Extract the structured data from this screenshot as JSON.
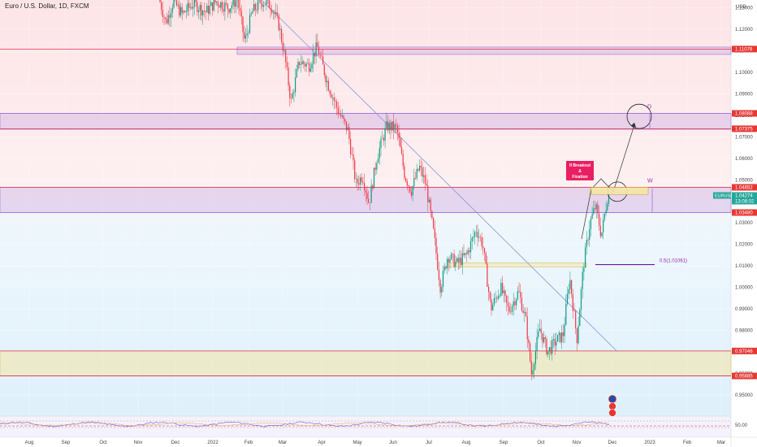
{
  "header": {
    "title": "Euro / U.S. Dollar, 1D, FXCM",
    "currency": "USD"
  },
  "colors": {
    "up": "#089981",
    "down": "#f23645",
    "level_line": "#e0314a",
    "zone_purple": "#b58be0",
    "zone_yellow": "#f3e6a6",
    "trend_line": "#7f8fd6",
    "label_red": "#e53935",
    "label_green": "#26a69a",
    "annotation_pink": "#e91e63",
    "purple_text": "#9c27b0"
  },
  "chart_data": {
    "type": "candlestick",
    "symbol": "EURUSD",
    "timeframe": "1D",
    "ylim": [
      0.941,
      1.138
    ],
    "y_ticks": [
      0.95,
      0.96,
      0.97,
      0.98,
      0.99,
      1.0,
      1.01,
      1.02,
      1.03,
      1.04,
      1.05,
      1.06,
      1.07,
      1.08,
      1.09,
      1.1,
      1.11,
      1.12,
      1.13
    ],
    "x_ticks": [
      "Aug",
      "Sep",
      "Oct",
      "Nov",
      "Dec",
      "2022",
      "Feb",
      "Mar",
      "Apr",
      "May",
      "Jun",
      "Jul",
      "Aug",
      "Sep",
      "Oct",
      "Nov",
      "Dec",
      "2023",
      "Feb",
      "Mar"
    ],
    "price_anchors": [
      [
        197,
        1.135
      ],
      [
        206,
        1.123
      ],
      [
        215,
        1.133
      ],
      [
        226,
        1.127
      ],
      [
        240,
        1.132
      ],
      [
        255,
        1.128
      ],
      [
        268,
        1.133
      ],
      [
        283,
        1.13
      ],
      [
        294,
        1.134
      ],
      [
        303,
        1.114
      ],
      [
        312,
        1.128
      ],
      [
        324,
        1.133
      ],
      [
        336,
        1.131
      ],
      [
        345,
        1.122
      ],
      [
        352,
        1.108
      ],
      [
        360,
        1.086
      ],
      [
        370,
        1.105
      ],
      [
        382,
        1.103
      ],
      [
        392,
        1.112
      ],
      [
        405,
        1.095
      ],
      [
        418,
        1.082
      ],
      [
        430,
        1.073
      ],
      [
        440,
        1.048
      ],
      [
        448,
        1.052
      ],
      [
        456,
        1.039
      ],
      [
        466,
        1.061
      ],
      [
        478,
        1.075
      ],
      [
        490,
        1.074
      ],
      [
        500,
        1.052
      ],
      [
        508,
        1.045
      ],
      [
        518,
        1.056
      ],
      [
        526,
        1.048
      ],
      [
        536,
        1.024
      ],
      [
        544,
        1.0
      ],
      [
        553,
        1.015
      ],
      [
        564,
        1.011
      ],
      [
        576,
        1.015
      ],
      [
        588,
        1.027
      ],
      [
        596,
        1.02
      ],
      [
        606,
        0.99
      ],
      [
        618,
        1.0
      ],
      [
        628,
        0.989
      ],
      [
        640,
        0.998
      ],
      [
        649,
        0.985
      ],
      [
        656,
        0.96
      ],
      [
        666,
        0.981
      ],
      [
        676,
        0.97
      ],
      [
        686,
        0.975
      ],
      [
        695,
        0.978
      ],
      [
        703,
        1.005
      ],
      [
        712,
        0.976
      ],
      [
        720,
        1.01
      ],
      [
        728,
        1.03
      ],
      [
        735,
        1.038
      ],
      [
        742,
        1.024
      ],
      [
        750,
        1.043
      ]
    ],
    "last_price": 1.04274,
    "last_price_label": "1.04274",
    "countdown": "13:08:02",
    "levels": [
      {
        "value": 1.11079,
        "label": "1.11079"
      },
      {
        "value": 1.08088,
        "label": "1.08088"
      },
      {
        "value": 1.07375,
        "label": "1.07375"
      },
      {
        "value": 1.04652,
        "label": "1.04652"
      },
      {
        "value": 1.0348,
        "label": "1.03480"
      },
      {
        "value": 0.97046,
        "label": "0.97046"
      },
      {
        "value": 0.95885,
        "label": "0.95885"
      }
    ],
    "zones": [
      {
        "from": 1.1083,
        "to": 1.1117,
        "color": "purple"
      },
      {
        "from": 1.0735,
        "to": 1.0809,
        "color": "purple"
      },
      {
        "from": 1.0348,
        "to": 1.0465,
        "color": "purple"
      },
      {
        "from": 0.9589,
        "to": 0.9705,
        "color": "yellow"
      },
      {
        "from": 1.0095,
        "to": 1.0114,
        "color": "yellow"
      },
      {
        "from": 1.0432,
        "to": 1.0465,
        "color": "yellow"
      }
    ],
    "fib_label": "0.5(1.01061)",
    "fib_value": 1.0106,
    "point_labels": {
      "d": "D",
      "w": "W"
    },
    "annotation_lines": [
      "If Breakout",
      "&",
      "Fixation"
    ],
    "indicator": {
      "value_label": "50.00"
    }
  }
}
